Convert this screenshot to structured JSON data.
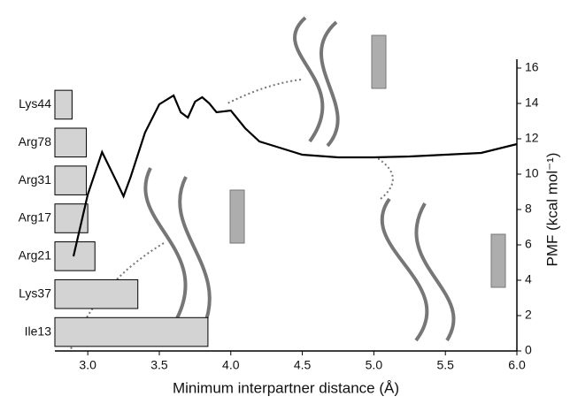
{
  "chart_data": [
    {
      "type": "barh",
      "categories": [
        "Lys44",
        "Arg78",
        "Arg31",
        "Arg17",
        "Arg21",
        "Lys37",
        "Ile13"
      ],
      "values": [
        2.89,
        2.99,
        2.99,
        3.0,
        3.05,
        3.35,
        3.84
      ],
      "color": "#d3d3d3",
      "xlim": [
        2.77,
        6.0
      ]
    },
    {
      "type": "line",
      "x_label": "Minimum interpartner distance (Å)",
      "y2_label": "PMF (kcal mol⁻¹)",
      "x": [
        2.9,
        3.0,
        3.1,
        3.2,
        3.25,
        3.3,
        3.4,
        3.5,
        3.6,
        3.65,
        3.7,
        3.75,
        3.8,
        3.85,
        3.9,
        4.0,
        4.1,
        4.2,
        4.3,
        4.5,
        4.75,
        5.0,
        5.25,
        5.5,
        5.75,
        6.0
      ],
      "series": [
        {
          "axis": "y2",
          "color": "#000000",
          "values": [
            5.35,
            8.85,
            11.25,
            9.6,
            8.75,
            9.85,
            12.35,
            13.95,
            14.45,
            13.5,
            13.2,
            14.1,
            14.35,
            14.0,
            13.5,
            13.6,
            12.6,
            11.85,
            11.6,
            11.1,
            10.95,
            10.95,
            11.0,
            11.1,
            11.2,
            11.7
          ]
        }
      ],
      "xlim": [
        2.77,
        6.0
      ],
      "xticks": [
        {
          "value": 3,
          "label": "3.0"
        },
        {
          "value": 3.5,
          "label": "3.5"
        },
        {
          "value": 4,
          "label": "4.0"
        },
        {
          "value": 4.5,
          "label": "4.5"
        },
        {
          "value": 5,
          "label": "5.0"
        },
        {
          "value": 5.5,
          "label": "5.5"
        },
        {
          "value": 6,
          "label": "6.0"
        }
      ],
      "y2lim": [
        0,
        16
      ],
      "y2ticks": [
        0,
        2,
        4,
        6,
        8,
        10,
        12,
        14,
        16
      ]
    }
  ]
}
